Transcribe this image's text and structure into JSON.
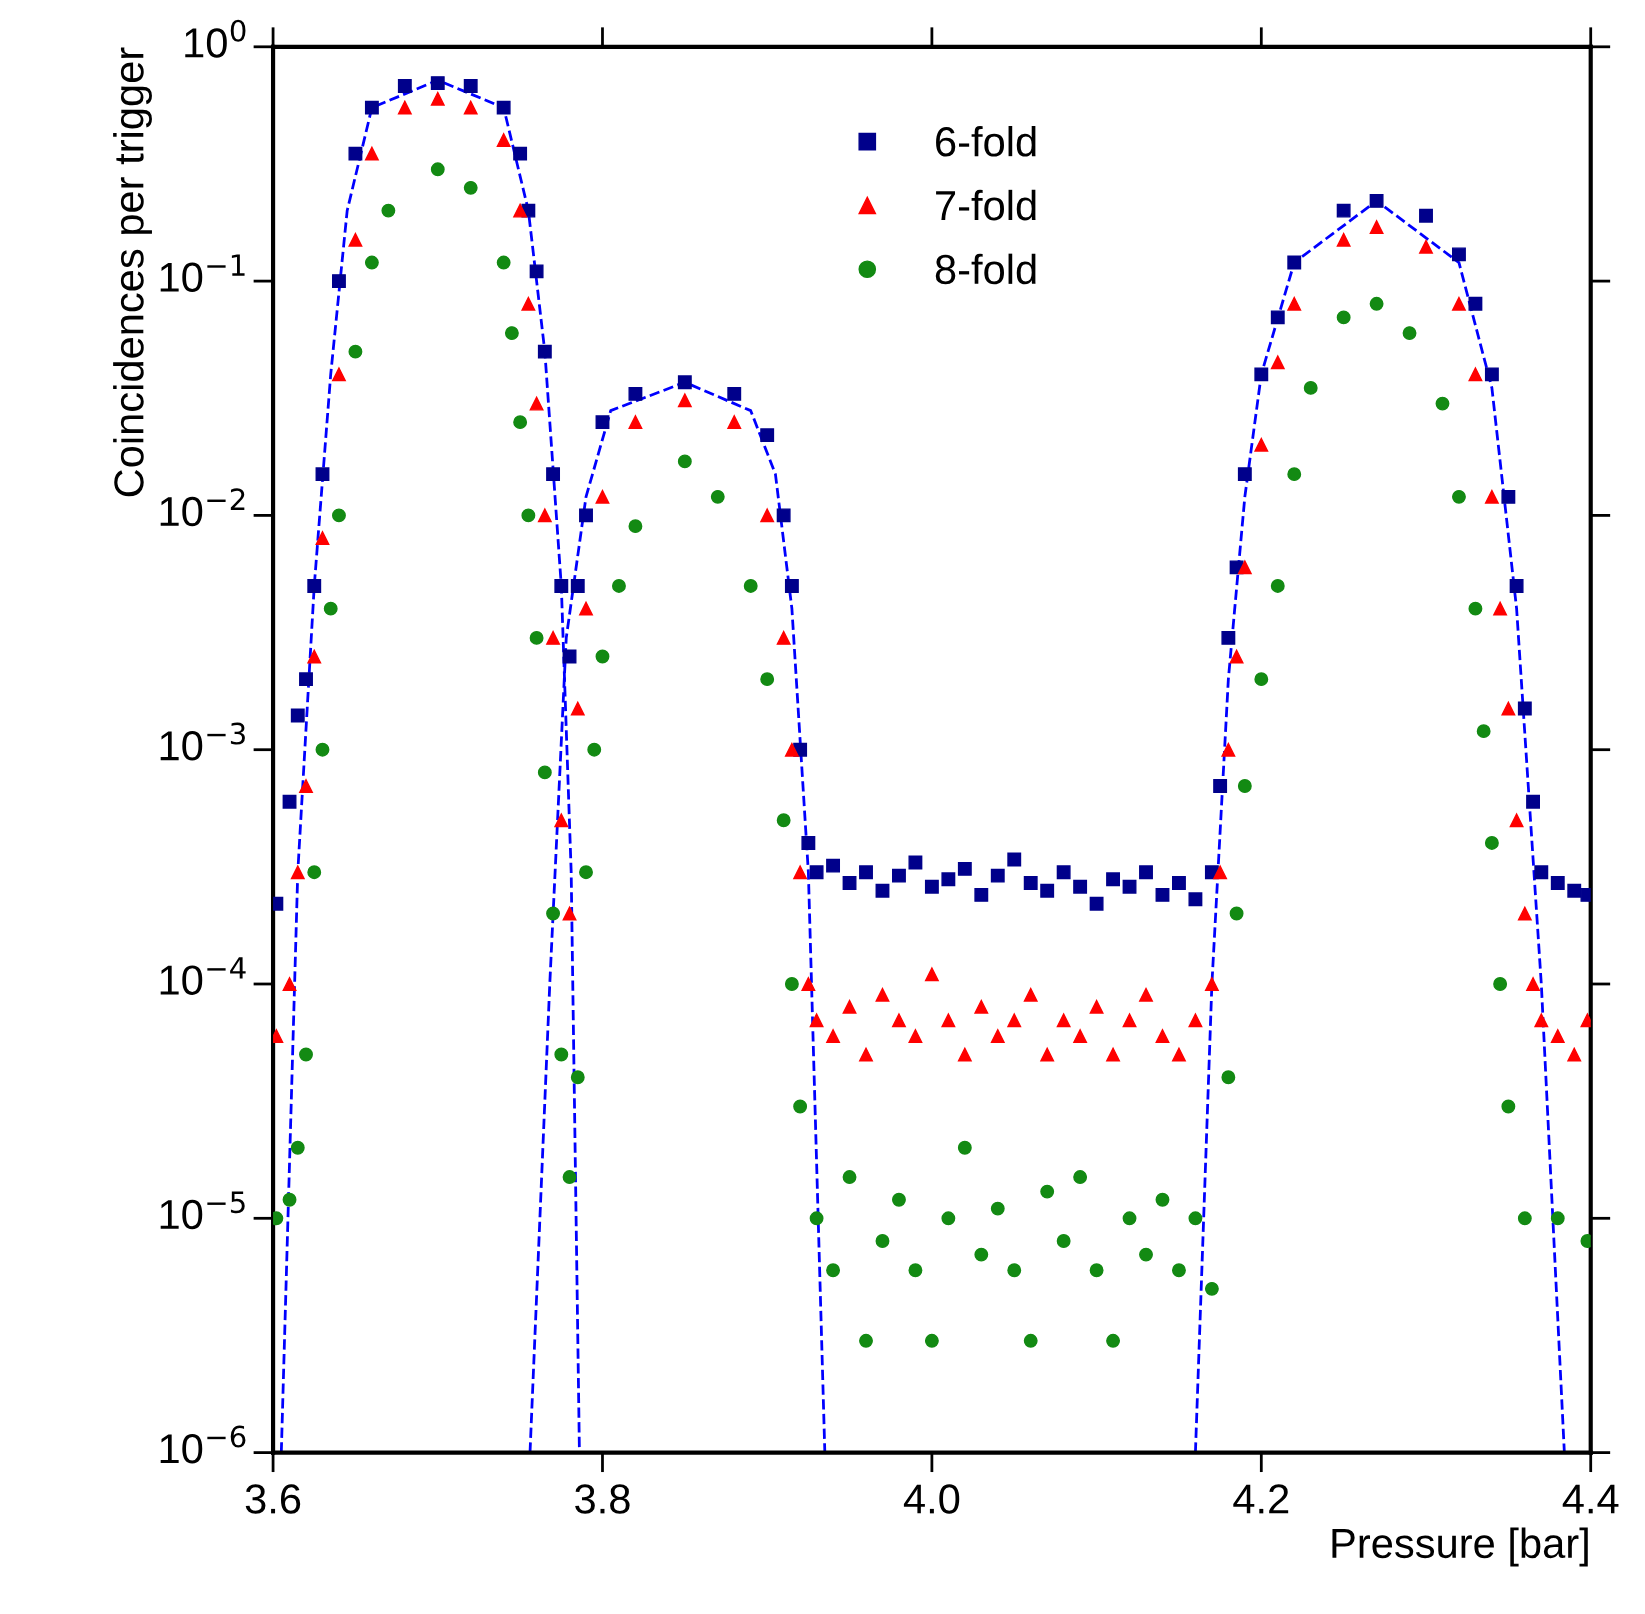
{
  "chart_data": {
    "type": "scatter",
    "xlabel": "Pressure [bar]",
    "ylabel": "Coincidences per trigger",
    "log": "y",
    "xlim": [
      3.6,
      4.4
    ],
    "xticks": [
      {
        "value": 3.6,
        "label": "3.6"
      },
      {
        "value": 3.8,
        "label": "3.8"
      },
      {
        "value": 4.0,
        "label": "4.0"
      },
      {
        "value": 4.2,
        "label": "4.2"
      },
      {
        "value": 4.4,
        "label": "4.4"
      }
    ],
    "ylim": [
      1e-06,
      1
    ],
    "yticks": [
      {
        "value": 1e-06,
        "label": "10$^{−6}$"
      },
      {
        "value": 1e-05,
        "label": "10$^{−5}$"
      },
      {
        "value": 0.0001,
        "label": "10$^{−4}$"
      },
      {
        "value": 0.001,
        "label": "10$^{−3}$"
      },
      {
        "value": 0.01,
        "label": "10$^{−2}$"
      },
      {
        "value": 0.1,
        "label": "10$^{−1}$"
      },
      {
        "value": 1,
        "label": "10$^{0}$"
      }
    ],
    "grid": false,
    "legend": "top",
    "series": [
      {
        "name": "6-fold",
        "marker": "square",
        "color": "#00008b",
        "x": [
          3.602,
          3.61,
          3.615,
          3.62,
          3.625,
          3.63,
          3.64,
          3.65,
          3.66,
          3.68,
          3.7,
          3.72,
          3.74,
          3.75,
          3.755,
          3.76,
          3.765,
          3.77,
          3.775,
          3.78,
          3.785,
          3.79,
          3.8,
          3.82,
          3.85,
          3.88,
          3.9,
          3.91,
          3.915,
          3.92,
          3.925,
          3.93,
          3.94,
          3.95,
          3.96,
          3.97,
          3.98,
          3.99,
          4.0,
          4.01,
          4.02,
          4.03,
          4.04,
          4.05,
          4.06,
          4.07,
          4.08,
          4.09,
          4.1,
          4.11,
          4.12,
          4.13,
          4.14,
          4.15,
          4.16,
          4.17,
          4.175,
          4.18,
          4.185,
          4.19,
          4.2,
          4.21,
          4.22,
          4.25,
          4.27,
          4.3,
          4.32,
          4.33,
          4.34,
          4.35,
          4.355,
          4.36,
          4.365,
          4.37,
          4.38,
          4.39,
          4.398
        ],
        "values": [
          0.00022,
          0.0006,
          0.0014,
          0.002,
          0.005,
          0.015,
          0.1,
          0.35,
          0.55,
          0.68,
          0.7,
          0.68,
          0.55,
          0.35,
          0.2,
          0.11,
          0.05,
          0.015,
          0.005,
          0.0025,
          0.005,
          0.01,
          0.025,
          0.033,
          0.037,
          0.033,
          0.022,
          0.01,
          0.005,
          0.001,
          0.0004,
          0.0003,
          0.00032,
          0.00027,
          0.0003,
          0.00025,
          0.00029,
          0.00033,
          0.00026,
          0.00028,
          0.00031,
          0.00024,
          0.00029,
          0.00034,
          0.00027,
          0.00025,
          0.0003,
          0.00026,
          0.00022,
          0.00028,
          0.00026,
          0.0003,
          0.00024,
          0.00027,
          0.00023,
          0.0003,
          0.0007,
          0.003,
          0.006,
          0.015,
          0.04,
          0.07,
          0.12,
          0.2,
          0.22,
          0.19,
          0.13,
          0.08,
          0.04,
          0.012,
          0.005,
          0.0015,
          0.0006,
          0.0003,
          0.00027,
          0.00025,
          0.00024
        ]
      },
      {
        "name": "7-fold",
        "marker": "triangle",
        "color": "#ff0000",
        "x": [
          3.602,
          3.61,
          3.615,
          3.62,
          3.625,
          3.63,
          3.64,
          3.65,
          3.66,
          3.68,
          3.7,
          3.72,
          3.74,
          3.75,
          3.755,
          3.76,
          3.765,
          3.77,
          3.775,
          3.78,
          3.785,
          3.79,
          3.8,
          3.82,
          3.85,
          3.88,
          3.9,
          3.91,
          3.915,
          3.92,
          3.925,
          3.93,
          3.94,
          3.95,
          3.96,
          3.97,
          3.98,
          3.99,
          4.0,
          4.01,
          4.02,
          4.03,
          4.04,
          4.05,
          4.06,
          4.07,
          4.08,
          4.09,
          4.1,
          4.11,
          4.12,
          4.13,
          4.14,
          4.15,
          4.16,
          4.17,
          4.175,
          4.18,
          4.185,
          4.19,
          4.2,
          4.21,
          4.22,
          4.25,
          4.27,
          4.3,
          4.32,
          4.33,
          4.34,
          4.345,
          4.35,
          4.355,
          4.36,
          4.365,
          4.37,
          4.38,
          4.39,
          4.398
        ],
        "values": [
          6e-05,
          0.0001,
          0.0003,
          0.0007,
          0.0025,
          0.008,
          0.04,
          0.15,
          0.35,
          0.55,
          0.6,
          0.55,
          0.4,
          0.2,
          0.08,
          0.03,
          0.01,
          0.003,
          0.0005,
          0.0002,
          0.0015,
          0.004,
          0.012,
          0.025,
          0.031,
          0.025,
          0.01,
          0.003,
          0.001,
          0.0003,
          0.0001,
          7e-05,
          6e-05,
          8e-05,
          5e-05,
          9e-05,
          7e-05,
          6e-05,
          0.00011,
          7e-05,
          5e-05,
          8e-05,
          6e-05,
          7e-05,
          9e-05,
          5e-05,
          7e-05,
          6e-05,
          8e-05,
          5e-05,
          7e-05,
          9e-05,
          6e-05,
          5e-05,
          7e-05,
          0.0001,
          0.0003,
          0.001,
          0.0025,
          0.006,
          0.02,
          0.045,
          0.08,
          0.15,
          0.17,
          0.14,
          0.08,
          0.04,
          0.012,
          0.004,
          0.0015,
          0.0005,
          0.0002,
          0.0001,
          7e-05,
          6e-05,
          5e-05,
          7e-05
        ]
      },
      {
        "name": "8-fold",
        "marker": "circle",
        "color": "#138a13",
        "x": [
          3.602,
          3.61,
          3.615,
          3.62,
          3.625,
          3.63,
          3.635,
          3.64,
          3.65,
          3.66,
          3.67,
          3.7,
          3.72,
          3.74,
          3.745,
          3.75,
          3.755,
          3.76,
          3.765,
          3.77,
          3.775,
          3.78,
          3.785,
          3.79,
          3.795,
          3.8,
          3.81,
          3.82,
          3.85,
          3.87,
          3.89,
          3.9,
          3.91,
          3.915,
          3.92,
          3.93,
          3.94,
          3.95,
          3.96,
          3.97,
          3.98,
          3.99,
          4.0,
          4.01,
          4.02,
          4.03,
          4.04,
          4.05,
          4.06,
          4.07,
          4.08,
          4.09,
          4.1,
          4.11,
          4.12,
          4.13,
          4.14,
          4.15,
          4.16,
          4.17,
          4.18,
          4.185,
          4.19,
          4.2,
          4.21,
          4.22,
          4.23,
          4.25,
          4.27,
          4.29,
          4.31,
          4.32,
          4.33,
          4.335,
          4.34,
          4.345,
          4.35,
          4.36,
          4.38,
          4.398
        ],
        "values": [
          1e-05,
          1.2e-05,
          2e-05,
          5e-05,
          0.0003,
          0.001,
          0.004,
          0.01,
          0.05,
          0.12,
          0.2,
          0.3,
          0.25,
          0.12,
          0.06,
          0.025,
          0.01,
          0.003,
          0.0008,
          0.0002,
          5e-05,
          1.5e-05,
          4e-05,
          0.0003,
          0.001,
          0.0025,
          0.005,
          0.009,
          0.017,
          0.012,
          0.005,
          0.002,
          0.0005,
          0.0001,
          3e-05,
          1e-05,
          6e-06,
          1.5e-05,
          3e-06,
          8e-06,
          1.2e-05,
          6e-06,
          3e-06,
          1e-05,
          2e-05,
          7e-06,
          1.1e-05,
          6e-06,
          3e-06,
          1.3e-05,
          8e-06,
          1.5e-05,
          6e-06,
          3e-06,
          1e-05,
          7e-06,
          1.2e-05,
          6e-06,
          1e-05,
          5e-06,
          4e-05,
          0.0002,
          0.0007,
          0.002,
          0.005,
          0.015,
          0.035,
          0.07,
          0.08,
          0.06,
          0.03,
          0.012,
          0.004,
          0.0012,
          0.0004,
          0.0001,
          3e-05,
          1e-05,
          1e-05,
          8e-06
        ]
      },
      {
        "type": "line",
        "marker": "none",
        "line_style": "dashed",
        "color": "#0000ff",
        "x": [
          3.605,
          3.615,
          3.625,
          3.635,
          3.645,
          3.66,
          3.7,
          3.74,
          3.755,
          3.765,
          3.775,
          3.781,
          3.786
        ],
        "values": [
          1e-06,
          0.0003,
          0.005,
          0.04,
          0.2,
          0.55,
          0.72,
          0.55,
          0.2,
          0.05,
          0.005,
          0.0003,
          1e-06
        ]
      },
      {
        "type": "line",
        "marker": "none",
        "line_style": "dashed",
        "color": "#0000ff",
        "x": [
          3.756,
          3.768,
          3.778,
          3.79,
          3.805,
          3.85,
          3.89,
          3.905,
          3.915,
          3.925,
          3.935
        ],
        "values": [
          1e-06,
          0.0001,
          0.003,
          0.012,
          0.028,
          0.037,
          0.028,
          0.015,
          0.004,
          0.0003,
          1e-06
        ]
      },
      {
        "type": "line",
        "marker": "none",
        "line_style": "dashed",
        "color": "#0000ff",
        "x": [
          4.16,
          4.17,
          4.18,
          4.19,
          4.2,
          4.22,
          4.27,
          4.32,
          4.34,
          4.355,
          4.37,
          4.384
        ],
        "values": [
          1e-06,
          0.0001,
          0.002,
          0.012,
          0.04,
          0.12,
          0.22,
          0.12,
          0.035,
          0.004,
          0.0001,
          1e-06
        ]
      }
    ]
  }
}
